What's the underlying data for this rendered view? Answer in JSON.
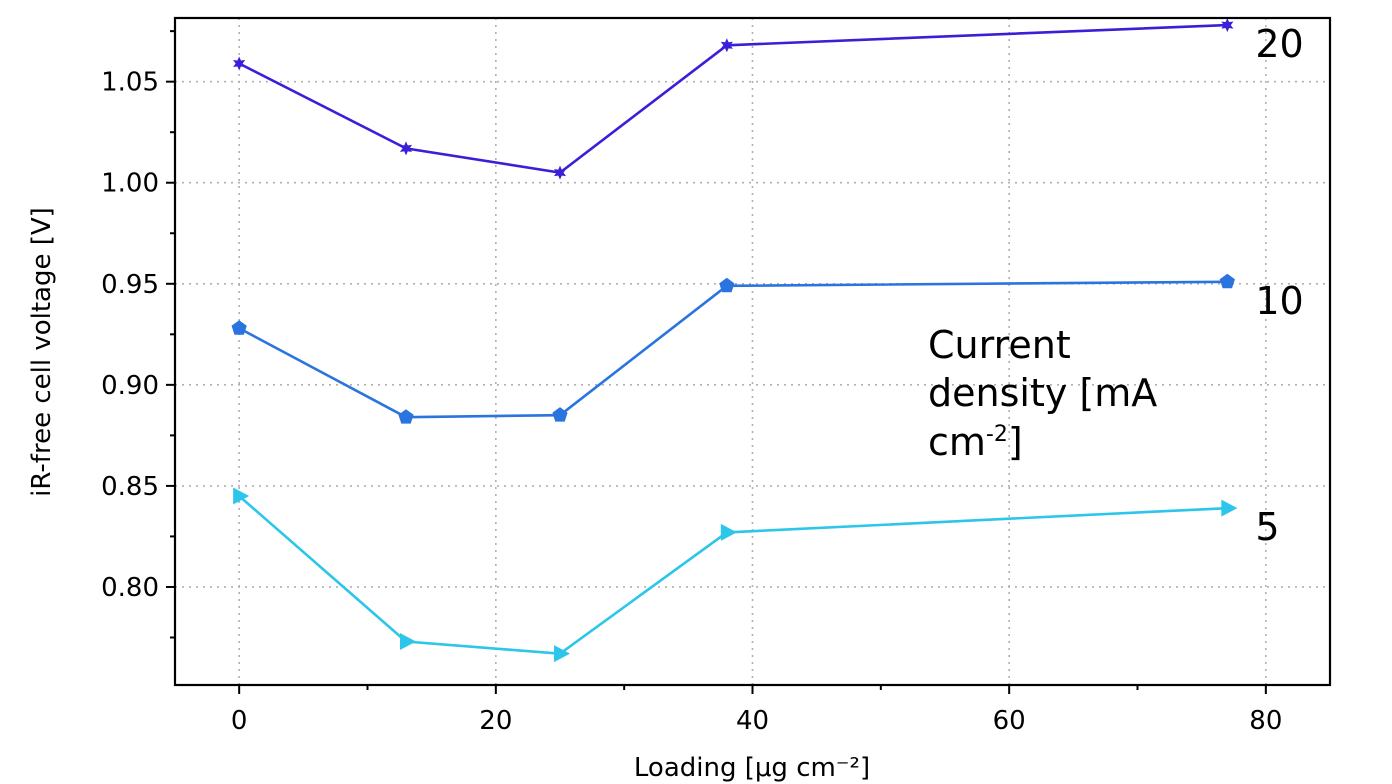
{
  "chart_data": {
    "type": "line",
    "xlabel": "Loading [μg cm⁻²]",
    "ylabel": "iR-free cell voltage [V]",
    "xlim": [
      -5,
      85
    ],
    "ylim": [
      0.7515,
      1.0815
    ],
    "x_ticks": [
      0,
      20,
      40,
      60,
      80
    ],
    "x_tick_labels": [
      "0",
      "20",
      "40",
      "60",
      "80"
    ],
    "y_ticks": [
      0.8,
      0.85,
      0.9,
      0.95,
      1.0,
      1.05
    ],
    "y_tick_labels": [
      "0.80",
      "0.85",
      "0.90",
      "0.95",
      "1.00",
      "1.05"
    ],
    "grid": true,
    "x": [
      0,
      13,
      25,
      38,
      77
    ],
    "series": [
      {
        "name": "20",
        "color": "#3a1fd8",
        "marker": "star",
        "values": [
          1.059,
          1.017,
          1.005,
          1.068,
          1.078
        ]
      },
      {
        "name": "10",
        "color": "#2a74e0",
        "marker": "pentagon",
        "values": [
          0.928,
          0.884,
          0.885,
          0.949,
          0.951
        ]
      },
      {
        "name": "5",
        "color": "#2bc6ea",
        "marker": "triangle-right",
        "values": [
          0.845,
          0.773,
          0.767,
          0.827,
          0.839
        ]
      }
    ],
    "annotation": {
      "line1": "Current",
      "line2": "density [mA",
      "line3": "cm",
      "sup": "-2",
      "line3_end": "]"
    }
  }
}
